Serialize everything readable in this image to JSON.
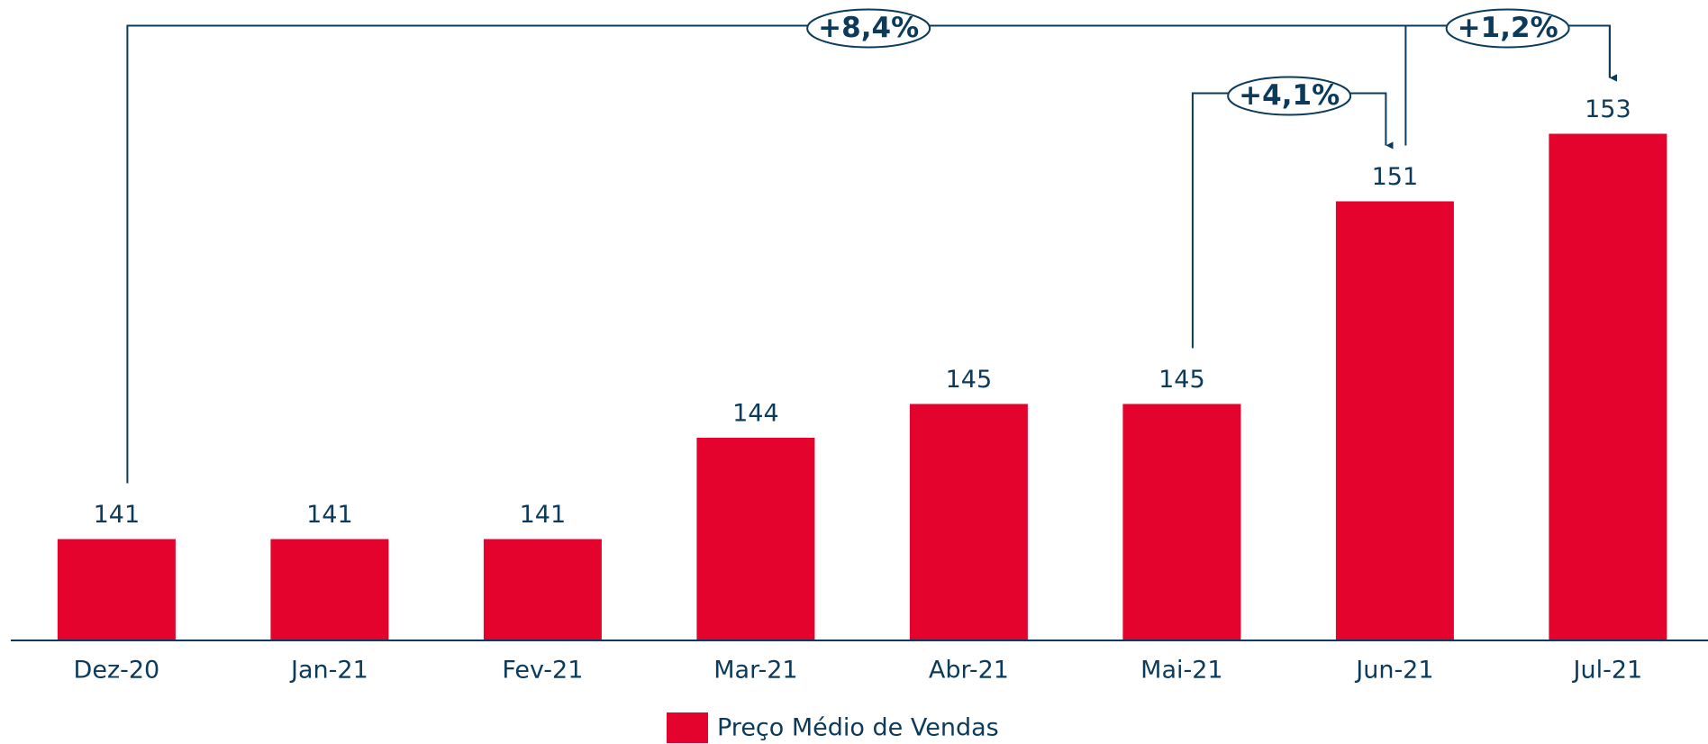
{
  "chart_data": {
    "type": "bar",
    "categories": [
      "Dez-20",
      "Jan-21",
      "Fev-21",
      "Mar-21",
      "Abr-21",
      "Mai-21",
      "Jun-21",
      "Jul-21"
    ],
    "series": [
      {
        "name": "Preço Médio de Vendas",
        "color": "#e4032c",
        "values": [
          141,
          141,
          141,
          144,
          145,
          145,
          151,
          153
        ]
      }
    ],
    "ylim": [
      138,
      155
    ],
    "annotations": [
      {
        "label": "+8,4%",
        "from": 0,
        "to": 7
      },
      {
        "label": "+4,1%",
        "from": 5,
        "to": 6
      },
      {
        "label": "+1,2%",
        "from": 6,
        "to": 7
      }
    ]
  }
}
